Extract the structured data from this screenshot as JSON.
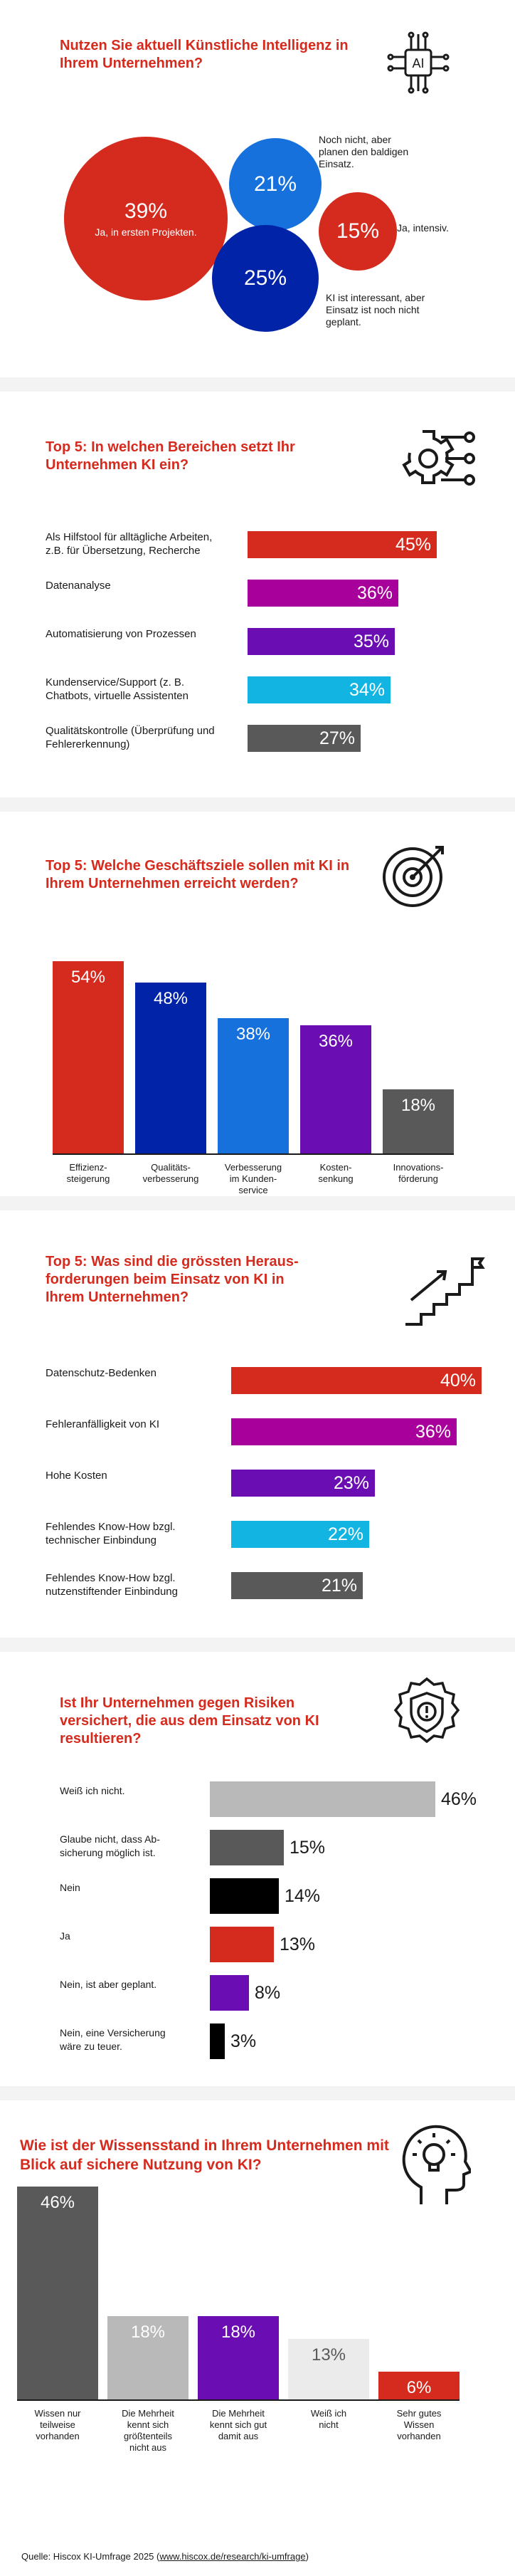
{
  "colors": {
    "red": "#d52b1e",
    "magenta": "#a8009a",
    "purple": "#6a0db2",
    "cyan": "#12b5e2",
    "gray": "#595959",
    "dark_blue": "#0023a8",
    "blue": "#0f5fd6",
    "mid_blue": "#1671dc",
    "light_gray": "#b9b9b9",
    "very_light_gray": "#ebebeb",
    "black": "#000000"
  },
  "icons": [
    "ai-chip-icon",
    "gear-network-icon",
    "target-arrow-icon",
    "stairs-flag-icon",
    "shield-alert-icon",
    "head-lightbulb-icon"
  ],
  "chart_data": [
    {
      "type": "bubble",
      "title": "Nutzen Sie aktuell Künstliche Intelligenz in Ihrem Unternehmen?",
      "series": [
        {
          "value": 39,
          "label": "39%",
          "sublabel": "Ja, in ersten Projekten.",
          "color": "#d52b1e"
        },
        {
          "value": 21,
          "label": "21%",
          "note": "Noch nicht, aber planen den baldigen Einsatz.",
          "color": "#1671dc"
        },
        {
          "value": 15,
          "label": "15%",
          "note": "Ja, intensiv.",
          "color": "#d52b1e"
        },
        {
          "value": 25,
          "label": "25%",
          "note": "KI ist interessant, aber Einsatz ist noch nicht geplant.",
          "color": "#0023a8"
        }
      ]
    },
    {
      "type": "bar",
      "orientation": "horizontal",
      "title": "Top 5: In welchen Bereichen setzt Ihr Unternehmen KI ein?",
      "categories": [
        "Als Hilfstool für alltägliche Arbeiten, z.B. für Übersetzung, Recherche",
        "Datenanalyse",
        "Automatisierung von Prozessen",
        "Kundenservice/Support (z. B. Chatbots, virtuelle Assistenten",
        "Qualitätskontrolle (Überprüfung und Fehlererkennung)"
      ],
      "values": [
        45,
        36,
        35,
        34,
        27
      ],
      "labels": [
        "45%",
        "36%",
        "35%",
        "34%",
        "27%"
      ],
      "colors": [
        "#d52b1e",
        "#a8009a",
        "#6a0db2",
        "#12b5e2",
        "#595959"
      ]
    },
    {
      "type": "bar",
      "orientation": "vertical",
      "title": "Top 5: Welche Geschäftsziele sollen mit KI in Ihrem Unternehmen erreicht werden?",
      "categories": [
        "Effizienz-\nsteigerung",
        "Qualitäts-\nverbesserung",
        "Verbesserung\nim Kunden-\nservice",
        "Kosten-\nsenkung",
        "Innovations-\nförderung"
      ],
      "values": [
        54,
        48,
        38,
        36,
        18
      ],
      "labels": [
        "54%",
        "48%",
        "38%",
        "36%",
        "18%"
      ],
      "colors": [
        "#d52b1e",
        "#0023a8",
        "#1671dc",
        "#6a0db2",
        "#595959"
      ]
    },
    {
      "type": "bar",
      "orientation": "horizontal",
      "title": "Top 5: Was sind die grössten Heraus-\nforderungen beim Einsatz von KI in\nIhrem Unternehmen?",
      "categories": [
        "Datenschutz-Bedenken",
        "Fehleranfälligkeit von KI",
        "Hohe Kosten",
        "Fehlendes Know-How bzgl. technischer Einbindung",
        "Fehlendes Know-How bzgl. nutzenstiftender Einbindung"
      ],
      "values": [
        40,
        36,
        23,
        22,
        21
      ],
      "labels": [
        "40%",
        "36%",
        "23%",
        "22%",
        "21%"
      ],
      "colors": [
        "#d52b1e",
        "#a8009a",
        "#6a0db2",
        "#12b5e2",
        "#595959"
      ]
    },
    {
      "type": "bar",
      "orientation": "horizontal",
      "title": "Ist Ihr Unternehmen gegen Risiken versichert, die aus dem Einsatz von KI resultieren?",
      "categories": [
        "Weiß ich nicht.",
        "Glaube nicht, dass Ab-\nsicherung möglich ist.",
        "Nein",
        "Ja",
        "Nein, ist aber geplant.",
        "Nein, eine Versicherung\nwäre zu teuer."
      ],
      "values": [
        46,
        15,
        14,
        13,
        8,
        3
      ],
      "labels": [
        "46%",
        "15%",
        "14%",
        "13%",
        "8%",
        "3%"
      ],
      "colors": [
        "#b9b9b9",
        "#595959",
        "#000000",
        "#d52b1e",
        "#6a0db2",
        "#000000"
      ]
    },
    {
      "type": "bar",
      "orientation": "vertical",
      "title": "Wie ist der Wissensstand in Ihrem Unternehmen mit Blick auf sichere Nutzung von KI?",
      "categories": [
        "Wissen nur\nteilweise\nvorhanden",
        "Die Mehrheit\nkennt sich\ngrößtenteils\nnicht aus",
        "Die Mehrheit\nkennt sich gut\ndamit aus",
        "Weiß ich\nnicht",
        "Sehr gutes\nWissen\nvorhanden"
      ],
      "values": [
        46,
        18,
        18,
        13,
        6
      ],
      "labels": [
        "46%",
        "18%",
        "18%",
        "13%",
        "6%"
      ],
      "colors": [
        "#595959",
        "#b9b9b9",
        "#6a0db2",
        "#ebebeb",
        "#d52b1e"
      ]
    }
  ],
  "source": {
    "prefix": "Quelle: Hiscox KI-Umfrage 2025 (",
    "link": "www.hiscox.de/research/ki-umfrage",
    "suffix": ")"
  }
}
